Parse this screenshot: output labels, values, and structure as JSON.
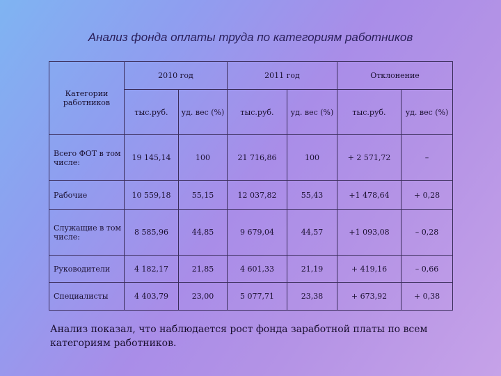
{
  "title": "Анализ фонда оплаты труда по категориям работников",
  "table": {
    "category_header": "Категории работников",
    "group_headers": [
      "2010 год",
      "2011 год",
      "Отклонение"
    ],
    "sub_headers": [
      "тыс.руб.",
      "уд. вес (%)",
      "тыс.руб.",
      "уд. вес (%)",
      "тыс.руб.",
      "уд. вес (%)"
    ],
    "rows": [
      {
        "category": "Всего ФОТ в том числе:",
        "cells": [
          "19 145,14",
          "100",
          "21 716,86",
          "100",
          "+ 2 571,72",
          "–"
        ]
      },
      {
        "category": "Рабочие",
        "cells": [
          "10 559,18",
          "55,15",
          "12 037,82",
          "55,43",
          "+1 478,64",
          "+ 0,28"
        ]
      },
      {
        "category": "Служащие в том числе:",
        "cells": [
          "8 585,96",
          "44,85",
          "9 679,04",
          "44,57",
          "+1 093,08",
          "– 0,28"
        ]
      },
      {
        "category": "Руководители",
        "cells": [
          "4 182,17",
          "21,85",
          "4 601,33",
          "21,19",
          "+ 419,16",
          "– 0,66"
        ]
      },
      {
        "category": "Специалисты",
        "cells": [
          "4 403,79",
          "23,00",
          "5 077,71",
          "23,38",
          "+ 673,92",
          "+ 0,38"
        ]
      }
    ]
  },
  "conclusion": "Анализ показал, что наблюдается рост фонда заработной платы по всем категориям работников."
}
